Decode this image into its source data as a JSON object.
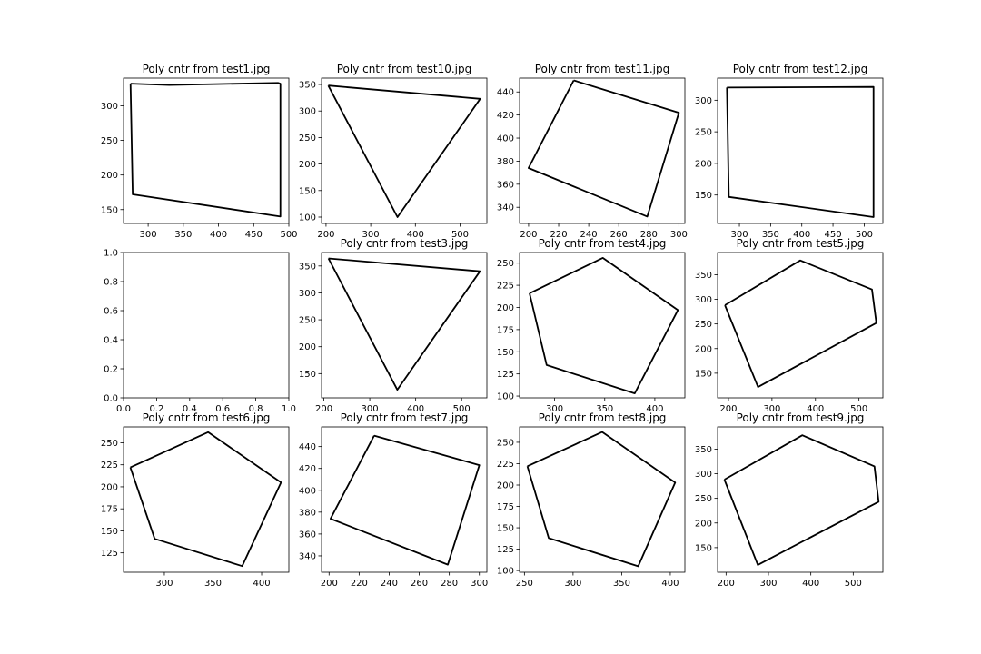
{
  "figure": {
    "background": "#ffffff",
    "line_color": "#000000"
  },
  "chart_data": [
    {
      "type": "line",
      "title": "Poly cntr from test1.jpg",
      "xlim": [
        265,
        500
      ],
      "ylim": [
        130,
        340
      ],
      "xticks": [
        300,
        350,
        400,
        450,
        500
      ],
      "yticks": [
        150,
        200,
        250,
        300
      ],
      "series": [
        {
          "points": [
            [
              275,
              332
            ],
            [
              330,
              330
            ],
            [
              485,
              333
            ],
            [
              488,
              332
            ],
            [
              488,
              140
            ],
            [
              278,
              172
            ],
            [
              275,
              332
            ]
          ]
        }
      ]
    },
    {
      "type": "line",
      "title": "Poly cntr from test10.jpg",
      "xlim": [
        190,
        560
      ],
      "ylim": [
        88,
        362
      ],
      "xticks": [
        200,
        300,
        400,
        500
      ],
      "yticks": [
        100,
        150,
        200,
        250,
        300,
        350
      ],
      "series": [
        {
          "points": [
            [
              205,
              348
            ],
            [
              545,
              323
            ],
            [
              360,
              100
            ],
            [
              205,
              348
            ]
          ]
        }
      ]
    },
    {
      "type": "line",
      "title": "Poly cntr from test11.jpg",
      "xlim": [
        194,
        304
      ],
      "ylim": [
        326,
        452
      ],
      "xticks": [
        200,
        220,
        240,
        260,
        280,
        300
      ],
      "yticks": [
        340,
        360,
        380,
        400,
        420,
        440
      ],
      "series": [
        {
          "points": [
            [
              230,
              450
            ],
            [
              300,
              422
            ],
            [
              279,
              332
            ],
            [
              200,
              374
            ],
            [
              230,
              450
            ]
          ]
        }
      ]
    },
    {
      "type": "line",
      "title": "Poly cntr from test12.jpg",
      "xlim": [
        265,
        530
      ],
      "ylim": [
        105,
        335
      ],
      "xticks": [
        300,
        350,
        400,
        450,
        500
      ],
      "yticks": [
        150,
        200,
        250,
        300
      ],
      "series": [
        {
          "points": [
            [
              280,
              320
            ],
            [
              515,
              321
            ],
            [
              515,
              115
            ],
            [
              283,
              147
            ],
            [
              280,
              320
            ]
          ]
        }
      ]
    },
    {
      "type": "line",
      "title": "",
      "xlim": [
        0,
        1
      ],
      "ylim": [
        0,
        1
      ],
      "xticks": [
        0.0,
        0.2,
        0.4,
        0.6,
        0.8,
        1.0
      ],
      "yticks": [
        0.0,
        0.2,
        0.4,
        0.6,
        0.8,
        1.0
      ],
      "xtick_labels": [
        "0.0",
        "0.2",
        "0.4",
        "0.6",
        "0.8",
        "1.0"
      ],
      "ytick_labels": [
        "0.0",
        "0.2",
        "0.4",
        "0.6",
        "0.8",
        "1.0"
      ],
      "series": []
    },
    {
      "type": "line",
      "title": "Poly cntr from test3.jpg",
      "xlim": [
        195,
        555
      ],
      "ylim": [
        105,
        375
      ],
      "xticks": [
        200,
        300,
        400,
        500
      ],
      "yticks": [
        150,
        200,
        250,
        300,
        350
      ],
      "series": [
        {
          "points": [
            [
              210,
              364
            ],
            [
              540,
              340
            ],
            [
              360,
              120
            ],
            [
              210,
              364
            ]
          ]
        }
      ]
    },
    {
      "type": "line",
      "title": "Poly cntr from test4.jpg",
      "xlim": [
        265,
        430
      ],
      "ylim": [
        98,
        262
      ],
      "xticks": [
        300,
        350,
        400
      ],
      "yticks": [
        100,
        125,
        150,
        175,
        200,
        225,
        250
      ],
      "series": [
        {
          "points": [
            [
              275,
              216
            ],
            [
              348,
              256
            ],
            [
              423,
              197
            ],
            [
              380,
              103
            ],
            [
              292,
              135
            ],
            [
              275,
              216
            ]
          ]
        }
      ]
    },
    {
      "type": "line",
      "title": "Poly cntr from test5.jpg",
      "xlim": [
        175,
        555
      ],
      "ylim": [
        100,
        395
      ],
      "xticks": [
        200,
        300,
        400,
        500
      ],
      "yticks": [
        150,
        200,
        250,
        300,
        350
      ],
      "series": [
        {
          "points": [
            [
              192,
              288
            ],
            [
              365,
              379
            ],
            [
              530,
              320
            ],
            [
              540,
              252
            ],
            [
              268,
              122
            ],
            [
              192,
              288
            ]
          ]
        }
      ]
    },
    {
      "type": "line",
      "title": "Poly cntr from test6.jpg",
      "xlim": [
        258,
        428
      ],
      "ylim": [
        103,
        268
      ],
      "xticks": [
        300,
        350,
        400
      ],
      "yticks": [
        125,
        150,
        175,
        200,
        225,
        250
      ],
      "series": [
        {
          "points": [
            [
              265,
              222
            ],
            [
              345,
              262
            ],
            [
              420,
              205
            ],
            [
              380,
              110
            ],
            [
              290,
              141
            ],
            [
              265,
              222
            ]
          ]
        }
      ]
    },
    {
      "type": "line",
      "title": "Poly cntr from test7.jpg",
      "xlim": [
        195,
        305
      ],
      "ylim": [
        325,
        458
      ],
      "xticks": [
        200,
        220,
        240,
        260,
        280,
        300
      ],
      "yticks": [
        340,
        360,
        380,
        400,
        420,
        440
      ],
      "series": [
        {
          "points": [
            [
              230,
              450
            ],
            [
              300,
              423
            ],
            [
              279,
              332
            ],
            [
              201,
              374
            ],
            [
              230,
              450
            ]
          ]
        }
      ]
    },
    {
      "type": "line",
      "title": "Poly cntr from test8.jpg",
      "xlim": [
        245,
        415
      ],
      "ylim": [
        98,
        268
      ],
      "xticks": [
        250,
        300,
        350,
        400
      ],
      "yticks": [
        100,
        125,
        150,
        175,
        200,
        225,
        250
      ],
      "series": [
        {
          "points": [
            [
              253,
              222
            ],
            [
              330,
              262
            ],
            [
              405,
              203
            ],
            [
              367,
              105
            ],
            [
              275,
              138
            ],
            [
              253,
              222
            ]
          ]
        }
      ]
    },
    {
      "type": "line",
      "title": "Poly cntr from test9.jpg",
      "xlim": [
        180,
        570
      ],
      "ylim": [
        100,
        395
      ],
      "xticks": [
        200,
        300,
        400,
        500
      ],
      "yticks": [
        150,
        200,
        250,
        300,
        350
      ],
      "series": [
        {
          "points": [
            [
              196,
              288
            ],
            [
              380,
              378
            ],
            [
              550,
              315
            ],
            [
              560,
              243
            ],
            [
              275,
              115
            ],
            [
              196,
              288
            ]
          ]
        }
      ]
    }
  ]
}
